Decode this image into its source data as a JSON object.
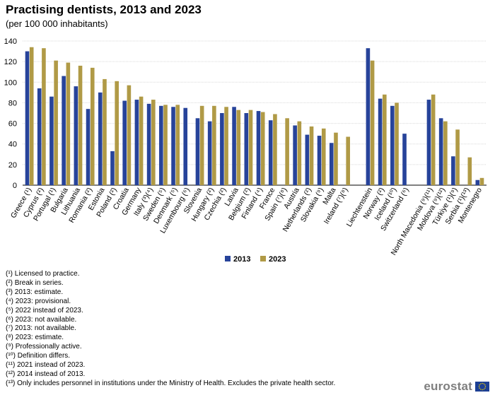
{
  "chart_data": {
    "type": "bar",
    "title": "Practising dentists, 2013 and 2023",
    "subtitle": "(per 100 000 inhabitants)",
    "xlabel": "",
    "ylabel": "",
    "ylim": [
      0,
      140
    ],
    "yticks": [
      0,
      20,
      40,
      60,
      80,
      100,
      120,
      140
    ],
    "grid": "horizontal",
    "legend_position": "bottom-center",
    "colors": {
      "2013": "#27439a",
      "2023": "#b09a46"
    },
    "categories": [
      "Greece (¹)",
      "Cyprus (²)",
      "Portugal (¹)",
      "Bulgaria",
      "Lithuania",
      "Romania (²)",
      "Estonia",
      "Poland (²)",
      "Croatia",
      "Germany",
      "Italy (³)(⁴)",
      "Sweden (⁵)",
      "Denmark (⁵)",
      "Luxembourg (⁶)",
      "Slovenia",
      "Hungary (²)",
      "Czechia (²)",
      "Latvia",
      "Belgium (²)",
      "Finland (⁴)",
      "France",
      "Spain (⁷)(⁸)",
      "Austria",
      "Netherlands (²)",
      "Slovakia (⁹)",
      "Malta",
      "Ireland (⁷)(⁸)",
      "Liechtenstein",
      "Norway (²)",
      "Iceland (¹⁰)",
      "Switzerland (⁶)",
      "North Macedonia (⁹)(¹¹)",
      "Moldova (⁹)(¹²)",
      "Türkiye (¹)(⁹)",
      "Serbia (¹)(¹³)",
      "Montenegro"
    ],
    "groups": [
      27,
      4,
      5
    ],
    "series": [
      {
        "name": "2013",
        "values": [
          130,
          94,
          86,
          106,
          96,
          74,
          90,
          33,
          82,
          83,
          79,
          77,
          76,
          75,
          65,
          62,
          70,
          76,
          70,
          72,
          63,
          null,
          58,
          49,
          48,
          41,
          null,
          133,
          84,
          77,
          50,
          83,
          65,
          28,
          null,
          5
        ]
      },
      {
        "name": "2023",
        "values": [
          134,
          133,
          121,
          119,
          116,
          114,
          103,
          101,
          97,
          86,
          83,
          78,
          78,
          null,
          77,
          77,
          76,
          73,
          73,
          71,
          69,
          65,
          62,
          57,
          55,
          51,
          47,
          121,
          88,
          80,
          null,
          88,
          62,
          54,
          27,
          7
        ]
      }
    ]
  },
  "footnotes": [
    "(¹) Licensed to practice.",
    "(²) Break in series.",
    "(³) 2013: estimate.",
    "(⁴) 2023: provisional.",
    "(⁵) 2022 instead of 2023.",
    "(⁶) 2023: not available.",
    "(⁷) 2013: not available.",
    "(⁸) 2023: estimate.",
    "(⁹) Professionally active.",
    "(¹⁰) Definition differs.",
    "(¹¹) 2021 instead of 2023.",
    "(¹²) 2014 instead of 2013.",
    "(¹³) Only includes personnel in institutions under the Ministry of Health. Excludes the private health sector."
  ],
  "logo": {
    "text": "eurostat",
    "flag_color": "#1c3f94",
    "star_color": "#ffdd00"
  }
}
